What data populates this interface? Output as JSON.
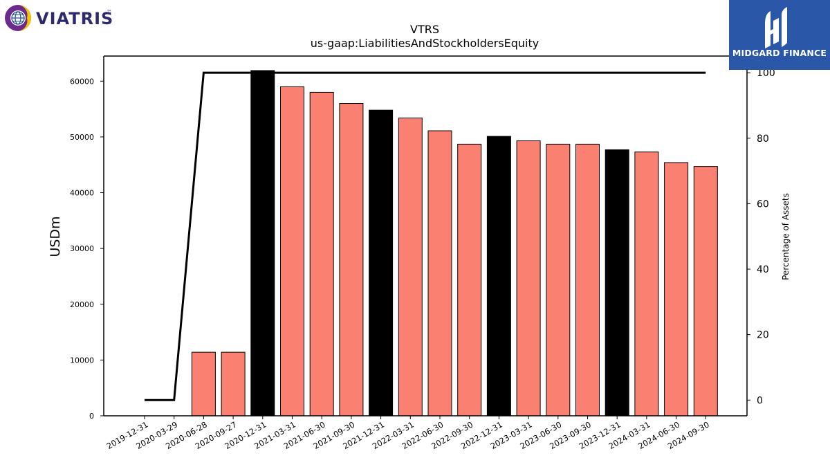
{
  "brand_left": {
    "name": "VIATRIS",
    "trademark": "™",
    "accent_colors": [
      "#6d2a8c",
      "#f5c400",
      "#1f4d9c"
    ]
  },
  "brand_right": {
    "name": "MIDGARD FINANCE",
    "background": "#2a57a8"
  },
  "chart_data": {
    "type": "bar",
    "title": "VTRS",
    "subtitle": "us-gaap:LiabilitiesAndStockholdersEquity",
    "ylabel": "USDm",
    "ylabel_right": "Percentage of Assets",
    "ylim": [
      0,
      64500
    ],
    "ylim_right": [
      -4.8,
      105.1
    ],
    "yticks": [
      0,
      10000,
      20000,
      30000,
      40000,
      50000,
      60000
    ],
    "yticks_right": [
      0,
      20,
      40,
      60,
      80,
      100
    ],
    "categories": [
      "2019-12-31",
      "2020-03-29",
      "2020-06-28",
      "2020-09-27",
      "2020-12-31",
      "2021-03-31",
      "2021-06-30",
      "2021-09-30",
      "2021-12-31",
      "2022-03-31",
      "2022-06-30",
      "2022-09-30",
      "2022-12-31",
      "2023-03-31",
      "2023-06-30",
      "2023-09-30",
      "2023-12-31",
      "2024-03-31",
      "2024-06-30",
      "2024-09-30"
    ],
    "series": [
      {
        "type": "bar",
        "axis": "left",
        "values": [
          0,
          0,
          11400,
          11400,
          61900,
          59000,
          58000,
          56000,
          54800,
          53400,
          51100,
          48700,
          50100,
          49300,
          48700,
          48700,
          47700,
          47300,
          45400,
          44700
        ],
        "colors": [
          "#fa8072",
          "#fa8072",
          "#fa8072",
          "#fa8072",
          "#000000",
          "#fa8072",
          "#fa8072",
          "#fa8072",
          "#000000",
          "#fa8072",
          "#fa8072",
          "#fa8072",
          "#000000",
          "#fa8072",
          "#fa8072",
          "#fa8072",
          "#000000",
          "#fa8072",
          "#fa8072",
          "#fa8072"
        ]
      },
      {
        "type": "line",
        "axis": "right",
        "color": "#000000",
        "values": [
          0,
          0,
          100,
          100,
          100,
          100,
          100,
          100,
          100,
          100,
          100,
          100,
          100,
          100,
          100,
          100,
          100,
          100,
          100,
          100
        ]
      }
    ],
    "grid": false
  }
}
